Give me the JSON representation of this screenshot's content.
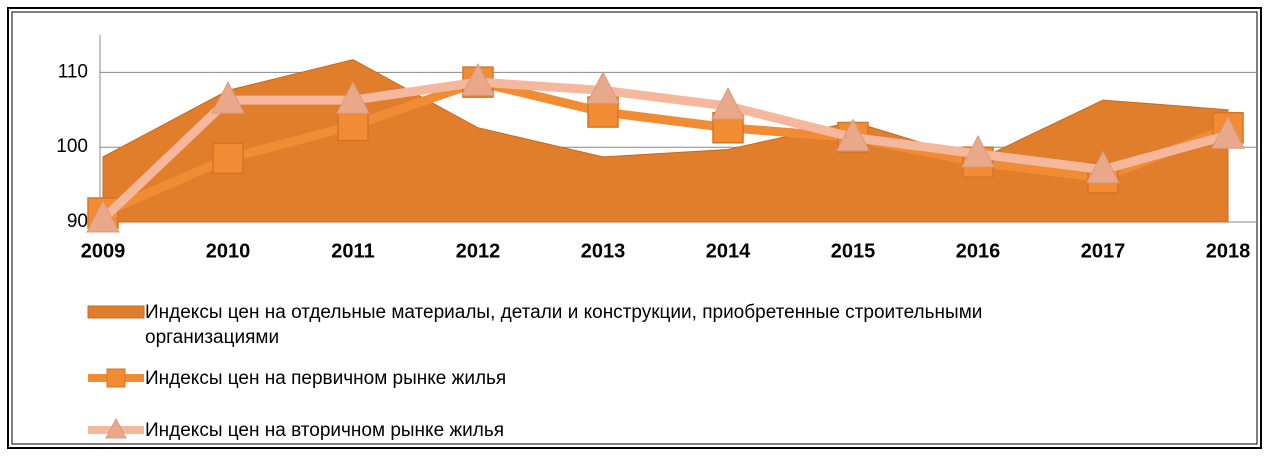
{
  "chart_data": {
    "type": "line",
    "categories": [
      "2009",
      "2010",
      "2011",
      "2012",
      "2013",
      "2014",
      "2015",
      "2016",
      "2017",
      "2018"
    ],
    "series": [
      {
        "name": "Индексы цен на отдельные материалы, детали и  конструкции, приобретенные строительными организациями",
        "type": "area",
        "color": "#e07e2c",
        "values": [
          98.7,
          107.6,
          111.7,
          102.6,
          98.7,
          99.7,
          103.4,
          98.3,
          106.3,
          105.0
        ]
      },
      {
        "name": "Индексы цен на первичном рынке жилья",
        "type": "line",
        "marker": "square",
        "color": "#f28c34",
        "values": [
          91.2,
          98.5,
          102.9,
          108.7,
          104.7,
          102.6,
          101.3,
          98.0,
          95.9,
          102.6
        ]
      },
      {
        "name": "Индексы цен на вторичном рынке жилья",
        "type": "line",
        "marker": "triangle",
        "color": "#f5b89c",
        "values": [
          90.4,
          106.3,
          106.3,
          108.7,
          107.6,
          105.5,
          101.3,
          99.1,
          97.0,
          101.6
        ]
      }
    ],
    "ylim": [
      90,
      115
    ],
    "yticks": [
      90,
      100,
      110
    ],
    "grid": true,
    "legend": "bottom"
  }
}
